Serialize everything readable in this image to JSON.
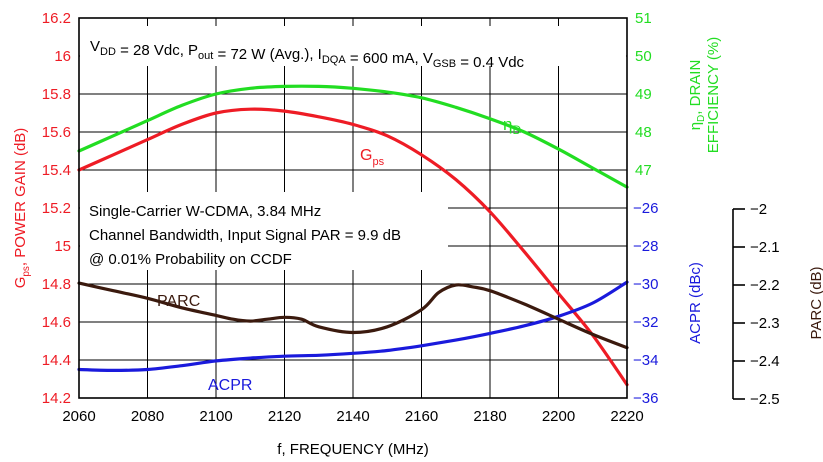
{
  "chart_data": {
    "type": "line",
    "conditions": {
      "segments": [
        {
          "text": "V",
          "sub": "DD"
        },
        {
          "text": " = 28 Vdc, P",
          "sub": "out"
        },
        {
          "text": " = 72 W (Avg.), I",
          "sub": "DQA"
        },
        {
          "text": " = 600 mA, V",
          "sub": "GSB"
        },
        {
          "text": " = 0.4 Vdc",
          "sub": ""
        }
      ]
    },
    "signal_notes": [
      "Single-Carrier W-CDMA, 3.84 MHz",
      "Channel Bandwidth, Input Signal PAR = 9.9 dB",
      "@ 0.01% Probability on CCDF"
    ],
    "x_axis": {
      "label": "f, FREQUENCY (MHz)",
      "range": [
        2060,
        2220
      ],
      "ticks": [
        "2060",
        "2080",
        "2100",
        "2120",
        "2140",
        "2160",
        "2180",
        "2200",
        "2220"
      ]
    },
    "axes": {
      "gps": {
        "label_main": "G",
        "label_sub": "ps",
        "label_rest": ", POWER GAIN (dB)",
        "range": [
          14.2,
          16.2
        ],
        "ticks": [
          "14.2",
          "14.4",
          "14.6",
          "14.8",
          "15",
          "15.2",
          "15.4",
          "15.6",
          "15.8",
          "16",
          "16.2"
        ],
        "color": "#ee1c25"
      },
      "eff": {
        "label_main": "η",
        "label_sub": "D",
        "label_rest": ", DRAIN",
        "label_line2": "EFFICIENCY (%)",
        "range": [
          47,
          51
        ],
        "ticks": [
          "47",
          "48",
          "49",
          "50",
          "51"
        ],
        "color": "#22dd22"
      },
      "acpr": {
        "label": "ACPR (dBc)",
        "range": [
          -36,
          -26
        ],
        "ticks": [
          "−26",
          "−28",
          "−30",
          "−32",
          "−34",
          "−36"
        ],
        "color": "#1a1adc"
      },
      "parc": {
        "label": "PARC (dB)",
        "range": [
          -2.5,
          -2
        ],
        "ticks": [
          "−2",
          "−2.1",
          "−2.2",
          "−2.3",
          "−2.4",
          "−2.5"
        ],
        "color": "#3b1a0e"
      }
    },
    "series": [
      {
        "name_main": "G",
        "name_sub": "ps",
        "axis": "gps",
        "color": "#ee1c25",
        "x": [
          2060,
          2070,
          2080,
          2090,
          2100,
          2110,
          2120,
          2130,
          2140,
          2150,
          2160,
          2170,
          2180,
          2190,
          2200,
          2210,
          2220
        ],
        "y": [
          15.4,
          15.48,
          15.56,
          15.64,
          15.7,
          15.72,
          15.71,
          15.68,
          15.64,
          15.58,
          15.48,
          15.35,
          15.18,
          14.97,
          14.75,
          14.53,
          14.27
        ]
      },
      {
        "name_main": "η",
        "name_sub": "D",
        "axis": "eff",
        "color": "#22dd22",
        "x": [
          2060,
          2070,
          2080,
          2090,
          2100,
          2110,
          2120,
          2130,
          2140,
          2150,
          2160,
          2170,
          2180,
          2190,
          2200,
          2210,
          2220
        ],
        "y": [
          47.5,
          47.9,
          48.3,
          48.7,
          49.0,
          49.15,
          49.2,
          49.2,
          49.15,
          49.05,
          48.9,
          48.65,
          48.35,
          48.0,
          47.55,
          47.05,
          46.55
        ]
      },
      {
        "name_main": "ACPR",
        "name_sub": "",
        "axis": "acpr",
        "color": "#1a1adc",
        "x": [
          2060,
          2070,
          2080,
          2090,
          2100,
          2110,
          2120,
          2130,
          2140,
          2150,
          2160,
          2170,
          2180,
          2190,
          2200,
          2210,
          2220
        ],
        "y": [
          -34.5,
          -34.55,
          -34.5,
          -34.3,
          -34.05,
          -33.9,
          -33.8,
          -33.75,
          -33.65,
          -33.5,
          -33.25,
          -32.95,
          -32.6,
          -32.2,
          -31.7,
          -31.0,
          -29.9
        ]
      },
      {
        "name_main": "PARC",
        "name_sub": "",
        "axis": "parc",
        "color": "#3b1a0e",
        "x": [
          2060,
          2070,
          2080,
          2090,
          2100,
          2105,
          2110,
          2115,
          2120,
          2125,
          2130,
          2140,
          2150,
          2160,
          2165,
          2170,
          2175,
          2180,
          2190,
          2200,
          2210,
          2220
        ],
        "y": [
          -2.195,
          -2.215,
          -2.235,
          -2.26,
          -2.28,
          -2.29,
          -2.295,
          -2.29,
          -2.285,
          -2.29,
          -2.31,
          -2.325,
          -2.31,
          -2.265,
          -2.22,
          -2.2,
          -2.205,
          -2.215,
          -2.25,
          -2.29,
          -2.33,
          -2.365
        ]
      }
    ]
  }
}
